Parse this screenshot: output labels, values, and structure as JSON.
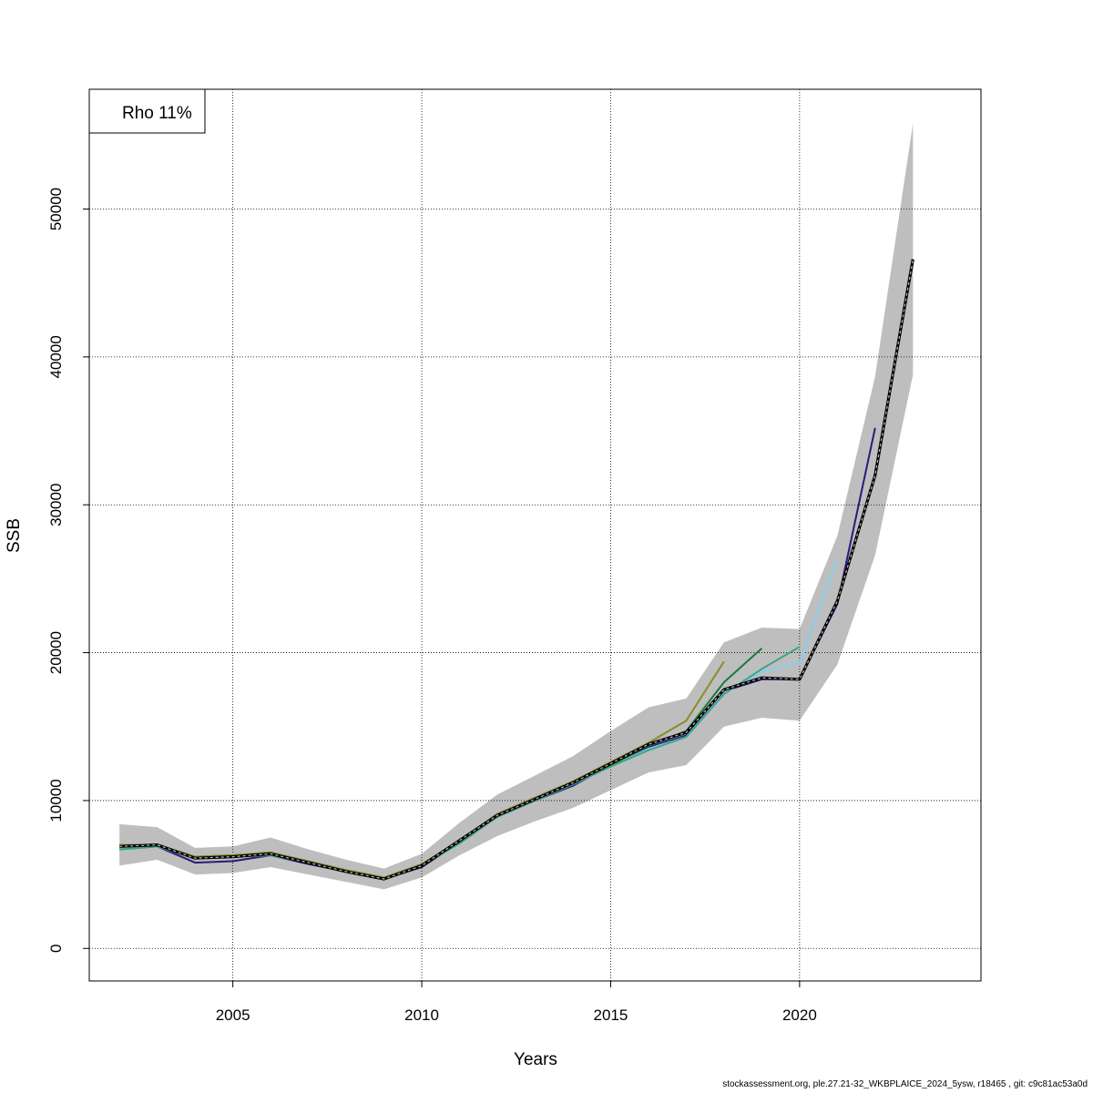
{
  "chart_data": {
    "type": "line",
    "xlabel": "Years",
    "ylabel": "SSB",
    "xlim": [
      2001.2,
      2024.8
    ],
    "ylim": [
      -2200,
      58100
    ],
    "x_ticks": [
      2005,
      2010,
      2015,
      2020
    ],
    "y_ticks": [
      0,
      10000,
      20000,
      30000,
      40000,
      50000
    ],
    "grid": true,
    "legend": {
      "position": "top-left",
      "text": "Rho 11%"
    },
    "confidence_band": {
      "color": "#bebebe",
      "x": [
        2002,
        2003,
        2004,
        2005,
        2006,
        2007,
        2008,
        2009,
        2010,
        2011,
        2012,
        2013,
        2014,
        2015,
        2016,
        2017,
        2018,
        2019,
        2020,
        2021,
        2022,
        2023
      ],
      "lower": [
        5600,
        6000,
        5000,
        5100,
        5500,
        5000,
        4500,
        4000,
        4800,
        6300,
        7600,
        8600,
        9500,
        10700,
        11900,
        12400,
        15000,
        15600,
        15400,
        19200,
        26600,
        38800
      ],
      "upper": [
        8400,
        8200,
        6800,
        6900,
        7500,
        6700,
        6000,
        5400,
        6400,
        8500,
        10400,
        11700,
        13000,
        14700,
        16300,
        16900,
        20700,
        21700,
        21600,
        27900,
        38700,
        55800
      ]
    },
    "series": [
      {
        "color": "#000000",
        "dashed": true,
        "x": [
          2002,
          2003,
          2004,
          2005,
          2006,
          2007,
          2008,
          2009,
          2010,
          2011,
          2012,
          2013,
          2014,
          2015,
          2016,
          2017,
          2018,
          2019,
          2020,
          2021,
          2022,
          2023
        ],
        "values": [
          6900,
          7000,
          6100,
          6200,
          6400,
          5800,
          5200,
          4700,
          5600,
          7300,
          9000,
          10100,
          11200,
          12500,
          13800,
          14600,
          17500,
          18300,
          18200,
          23500,
          32000,
          46600
        ]
      },
      {
        "color": "#2b1a7a",
        "x": [
          2002,
          2003,
          2004,
          2005,
          2006,
          2007,
          2008,
          2009,
          2010,
          2011,
          2012,
          2013,
          2014,
          2015,
          2016,
          2017,
          2018,
          2019,
          2020,
          2021,
          2022
        ],
        "values": [
          6700,
          6900,
          5800,
          5900,
          6300,
          5700,
          5200,
          4700,
          5500,
          7200,
          8900,
          10000,
          11000,
          12400,
          13600,
          14400,
          17400,
          18200,
          18200,
          23300,
          35200
        ]
      },
      {
        "color": "#87ceeb",
        "x": [
          2002,
          2003,
          2004,
          2005,
          2006,
          2007,
          2008,
          2009,
          2010,
          2011,
          2012,
          2013,
          2014,
          2015,
          2016,
          2017,
          2018,
          2019,
          2020,
          2021
        ],
        "values": [
          6800,
          6900,
          6100,
          6200,
          6300,
          5800,
          5200,
          4700,
          5600,
          7200,
          8900,
          10000,
          11100,
          12300,
          13500,
          14300,
          17300,
          18700,
          19300,
          26400
        ]
      },
      {
        "color": "#3aa58c",
        "x": [
          2002,
          2003,
          2004,
          2005,
          2006,
          2007,
          2008,
          2009,
          2010,
          2011,
          2012,
          2013,
          2014,
          2015,
          2016,
          2017,
          2018,
          2019,
          2020
        ],
        "values": [
          6700,
          6900,
          6100,
          6200,
          6300,
          5800,
          5200,
          4700,
          5600,
          7100,
          8900,
          10000,
          11100,
          12300,
          13400,
          14300,
          17200,
          18900,
          20400
        ]
      },
      {
        "color": "#1a7a3a",
        "x": [
          2002,
          2003,
          2004,
          2005,
          2006,
          2007,
          2008,
          2009,
          2010,
          2011,
          2012,
          2013,
          2014,
          2015,
          2016,
          2017,
          2018,
          2019
        ],
        "values": [
          6900,
          7000,
          6200,
          6300,
          6400,
          5800,
          5200,
          4700,
          5600,
          7200,
          9000,
          10100,
          11200,
          12400,
          13700,
          14700,
          18000,
          20300
        ]
      },
      {
        "color": "#8b8b2a",
        "x": [
          2002,
          2003,
          2004,
          2005,
          2006,
          2007,
          2008,
          2009,
          2010,
          2011,
          2012,
          2013,
          2014,
          2015,
          2016,
          2017,
          2018
        ],
        "values": [
          7000,
          7000,
          6200,
          6300,
          6500,
          5900,
          5300,
          4800,
          5700,
          7300,
          9100,
          10200,
          11300,
          12600,
          13900,
          15400,
          19400
        ]
      }
    ]
  },
  "footer": "stockassessment.org, ple.27.21-32_WKBPLAICE_2024_5ysw, r18465 , git: c9c81ac53a0d"
}
